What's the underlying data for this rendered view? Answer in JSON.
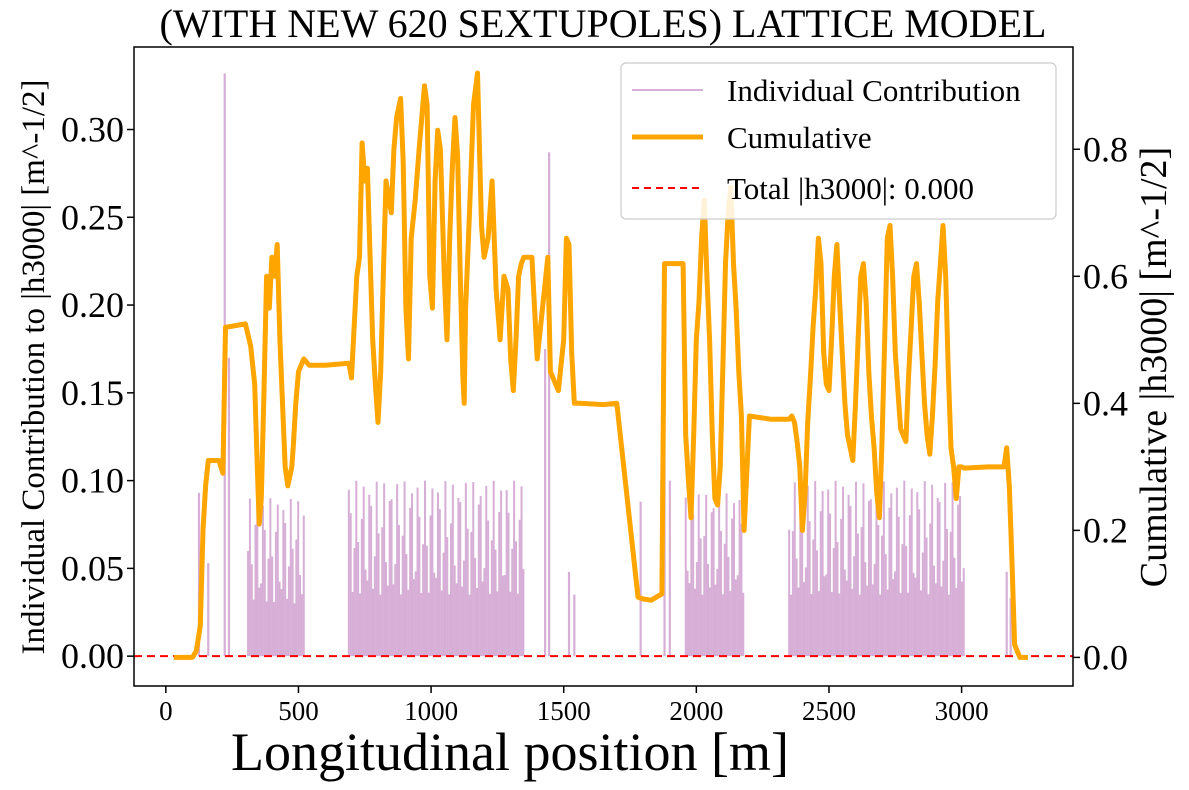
{
  "chart_data": {
    "type": "line",
    "title": "(WITH NEW 620 SEXTUPOLES) LATTICE MODEL",
    "xlabel": "Longitudinal position [m]",
    "ylabel_left": "Individual Contribution to |h3000| [m^-1/2]",
    "ylabel_right": "Cumulative |h3000| [m^-1/2]",
    "xlim": [
      -120,
      3420
    ],
    "ylim_left": [
      -0.017,
      0.347
    ],
    "ylim_right": [
      -0.045,
      0.961
    ],
    "x_ticks": [
      "0",
      "500",
      "1000",
      "1500",
      "2000",
      "2500",
      "3000"
    ],
    "x_tick_values": [
      0,
      500,
      1000,
      1500,
      2000,
      2500,
      3000
    ],
    "y_left_ticks": [
      "0.00",
      "0.05",
      "0.10",
      "0.15",
      "0.20",
      "0.25",
      "0.30"
    ],
    "y_left_tick_values": [
      0,
      0.05,
      0.1,
      0.15,
      0.2,
      0.25,
      0.3
    ],
    "y_right_ticks": [
      "0.0",
      "0.2",
      "0.4",
      "0.6",
      "0.8"
    ],
    "y_right_tick_values": [
      0,
      0.2,
      0.4,
      0.6,
      0.8
    ],
    "legend": {
      "placement": "upper-right",
      "entries": [
        {
          "label": "Individual Contribution",
          "color": "#d6aed6",
          "style": "solid-thin"
        },
        {
          "label": "Cumulative",
          "color": "#ffa500",
          "style": "solid-thick"
        },
        {
          "label": "Total |h3000|: 0.000",
          "color": "#ff0000",
          "style": "dashed"
        }
      ]
    },
    "series": [
      {
        "name": "Individual Contribution",
        "axis": "left",
        "color": "#d6aed6",
        "segments": [
          {
            "x_start": 310,
            "x_end": 520,
            "min": 0.03,
            "max": 0.09
          },
          {
            "x_start": 690,
            "x_end": 1350,
            "min": 0.035,
            "max": 0.1
          },
          {
            "x_start": 1960,
            "x_end": 2180,
            "min": 0.035,
            "max": 0.093
          },
          {
            "x_start": 2350,
            "x_end": 3010,
            "min": 0.035,
            "max": 0.1
          }
        ],
        "spikes": [
          {
            "x": 125,
            "y": 0.093
          },
          {
            "x": 160,
            "y": 0.053
          },
          {
            "x": 222,
            "y": 0.332
          },
          {
            "x": 238,
            "y": 0.17
          },
          {
            "x": 1430,
            "y": 0.175
          },
          {
            "x": 1445,
            "y": 0.287
          },
          {
            "x": 1520,
            "y": 0.048
          },
          {
            "x": 1540,
            "y": 0.035
          },
          {
            "x": 1790,
            "y": 0.088
          },
          {
            "x": 1880,
            "y": 0.218
          },
          {
            "x": 1900,
            "y": 0.1
          },
          {
            "x": 3170,
            "y": 0.048
          },
          {
            "x": 3185,
            "y": 0.033
          }
        ]
      },
      {
        "name": "Cumulative",
        "axis": "right",
        "color": "#ffa500",
        "x": [
          30,
          100,
          115,
          130,
          140,
          150,
          160,
          200,
          215,
          225,
          230,
          300,
          320,
          335,
          345,
          352,
          360,
          370,
          380,
          390,
          400,
          410,
          420,
          430,
          440,
          450,
          460,
          475,
          480,
          490,
          500,
          520,
          540,
          600,
          690,
          700,
          705,
          720,
          730,
          740,
          750,
          760,
          770,
          780,
          790,
          800,
          810,
          820,
          830,
          850,
          860,
          870,
          885,
          895,
          905,
          915,
          925,
          940,
          955,
          965,
          975,
          985,
          995,
          1005,
          1015,
          1025,
          1035,
          1050,
          1060,
          1070,
          1080,
          1090,
          1100,
          1110,
          1120,
          1125,
          1130,
          1145,
          1160,
          1175,
          1190,
          1200,
          1215,
          1230,
          1245,
          1260,
          1275,
          1290,
          1300,
          1310,
          1320,
          1330,
          1340,
          1350,
          1380,
          1400,
          1420,
          1440,
          1450,
          1480,
          1500,
          1510,
          1520,
          1530,
          1540,
          1550,
          1560,
          1650,
          1700,
          1780,
          1800,
          1830,
          1870,
          1880,
          1900,
          1950,
          1960,
          1970,
          1980,
          1990,
          2000,
          2010,
          2020,
          2030,
          2040,
          2050,
          2060,
          2070,
          2080,
          2090,
          2100,
          2110,
          2120,
          2130,
          2140,
          2150,
          2160,
          2170,
          2180,
          2200,
          2280,
          2350,
          2360,
          2370,
          2380,
          2390,
          2400,
          2410,
          2420,
          2430,
          2440,
          2450,
          2460,
          2470,
          2480,
          2490,
          2500,
          2510,
          2520,
          2530,
          2540,
          2550,
          2560,
          2570,
          2580,
          2590,
          2600,
          2610,
          2620,
          2630,
          2640,
          2650,
          2660,
          2670,
          2680,
          2690,
          2700,
          2710,
          2720,
          2730,
          2740,
          2750,
          2760,
          2770,
          2780,
          2790,
          2800,
          2810,
          2820,
          2830,
          2840,
          2850,
          2860,
          2870,
          2880,
          2890,
          2900,
          2910,
          2920,
          2930,
          2940,
          2950,
          2960,
          2970,
          2980,
          2990,
          3000,
          3010,
          3100,
          3160,
          3170,
          3180,
          3190,
          3200,
          3220,
          3250
        ],
        "values": [
          0,
          0,
          0.01,
          0.05,
          0.2,
          0.27,
          0.31,
          0.31,
          0.29,
          0.52,
          0.52,
          0.525,
          0.49,
          0.43,
          0.3,
          0.21,
          0.25,
          0.42,
          0.6,
          0.55,
          0.63,
          0.6,
          0.65,
          0.5,
          0.4,
          0.3,
          0.27,
          0.3,
          0.33,
          0.4,
          0.45,
          0.47,
          0.46,
          0.46,
          0.463,
          0.44,
          0.48,
          0.6,
          0.63,
          0.81,
          0.75,
          0.77,
          0.63,
          0.5,
          0.43,
          0.37,
          0.45,
          0.6,
          0.75,
          0.7,
          0.8,
          0.85,
          0.88,
          0.78,
          0.55,
          0.47,
          0.66,
          0.72,
          0.8,
          0.85,
          0.9,
          0.87,
          0.6,
          0.55,
          0.75,
          0.83,
          0.8,
          0.6,
          0.5,
          0.66,
          0.77,
          0.85,
          0.79,
          0.6,
          0.44,
          0.4,
          0.55,
          0.7,
          0.87,
          0.92,
          0.68,
          0.63,
          0.66,
          0.75,
          0.58,
          0.5,
          0.6,
          0.58,
          0.47,
          0.42,
          0.5,
          0.6,
          0.62,
          0.63,
          0.63,
          0.47,
          0.55,
          0.63,
          0.45,
          0.42,
          0.5,
          0.66,
          0.65,
          0.48,
          0.4,
          0.4,
          0.4,
          0.398,
          0.4,
          0.095,
          0.092,
          0.09,
          0.1,
          0.62,
          0.62,
          0.62,
          0.35,
          0.28,
          0.22,
          0.35,
          0.5,
          0.56,
          0.66,
          0.72,
          0.6,
          0.5,
          0.35,
          0.25,
          0.24,
          0.3,
          0.46,
          0.62,
          0.7,
          0.74,
          0.62,
          0.55,
          0.45,
          0.38,
          0.2,
          0.38,
          0.375,
          0.375,
          0.38,
          0.37,
          0.34,
          0.3,
          0.2,
          0.26,
          0.37,
          0.44,
          0.52,
          0.58,
          0.66,
          0.62,
          0.48,
          0.43,
          0.42,
          0.5,
          0.6,
          0.65,
          0.56,
          0.48,
          0.4,
          0.35,
          0.33,
          0.31,
          0.4,
          0.5,
          0.6,
          0.62,
          0.56,
          0.45,
          0.38,
          0.33,
          0.26,
          0.22,
          0.34,
          0.5,
          0.66,
          0.68,
          0.6,
          0.48,
          0.42,
          0.36,
          0.35,
          0.34,
          0.44,
          0.52,
          0.6,
          0.62,
          0.56,
          0.48,
          0.4,
          0.35,
          0.32,
          0.38,
          0.46,
          0.56,
          0.62,
          0.68,
          0.6,
          0.45,
          0.33,
          0.3,
          0.25,
          0.3,
          0.3,
          0.298,
          0.3,
          0.3,
          0.33,
          0.27,
          0.15,
          0.02,
          0.0,
          0.0
        ]
      },
      {
        "name": "Total |h3000|: 0.000",
        "axis": "left",
        "color": "#ff0000",
        "style": "dashed",
        "value": 0.0
      }
    ]
  }
}
